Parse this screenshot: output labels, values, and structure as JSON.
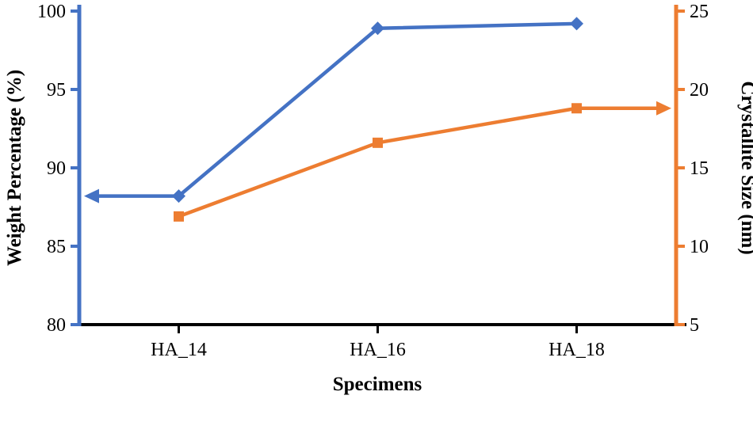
{
  "chart_data": {
    "type": "line",
    "title": "",
    "categories": [
      "HA_14",
      "HA_16",
      "HA_18"
    ],
    "series": [
      {
        "name": "Weight Percentage",
        "axis": "left",
        "color": "#4472C4",
        "marker": "diamond",
        "arrow": "left",
        "values": [
          88.2,
          98.9,
          99.2
        ]
      },
      {
        "name": "Crystallite Size",
        "axis": "right",
        "color": "#ED7D31",
        "marker": "square",
        "arrow": "right",
        "values": [
          11.9,
          16.6,
          18.8
        ]
      }
    ],
    "left_axis": {
      "label": "Weight Percentage (%)",
      "min": 80,
      "max": 100,
      "step": 5,
      "ticks": [
        "100",
        "95",
        "90",
        "85",
        "80"
      ],
      "color": "#4472C4"
    },
    "right_axis": {
      "label": "Crystallite Size (nm)",
      "min": 5,
      "max": 25,
      "step": 5,
      "ticks": [
        "25",
        "20",
        "15",
        "10",
        "5"
      ],
      "color": "#ED7D31"
    },
    "x_axis": {
      "label": "Specimens",
      "color": "#000000"
    },
    "grid": false,
    "legend": "none"
  }
}
